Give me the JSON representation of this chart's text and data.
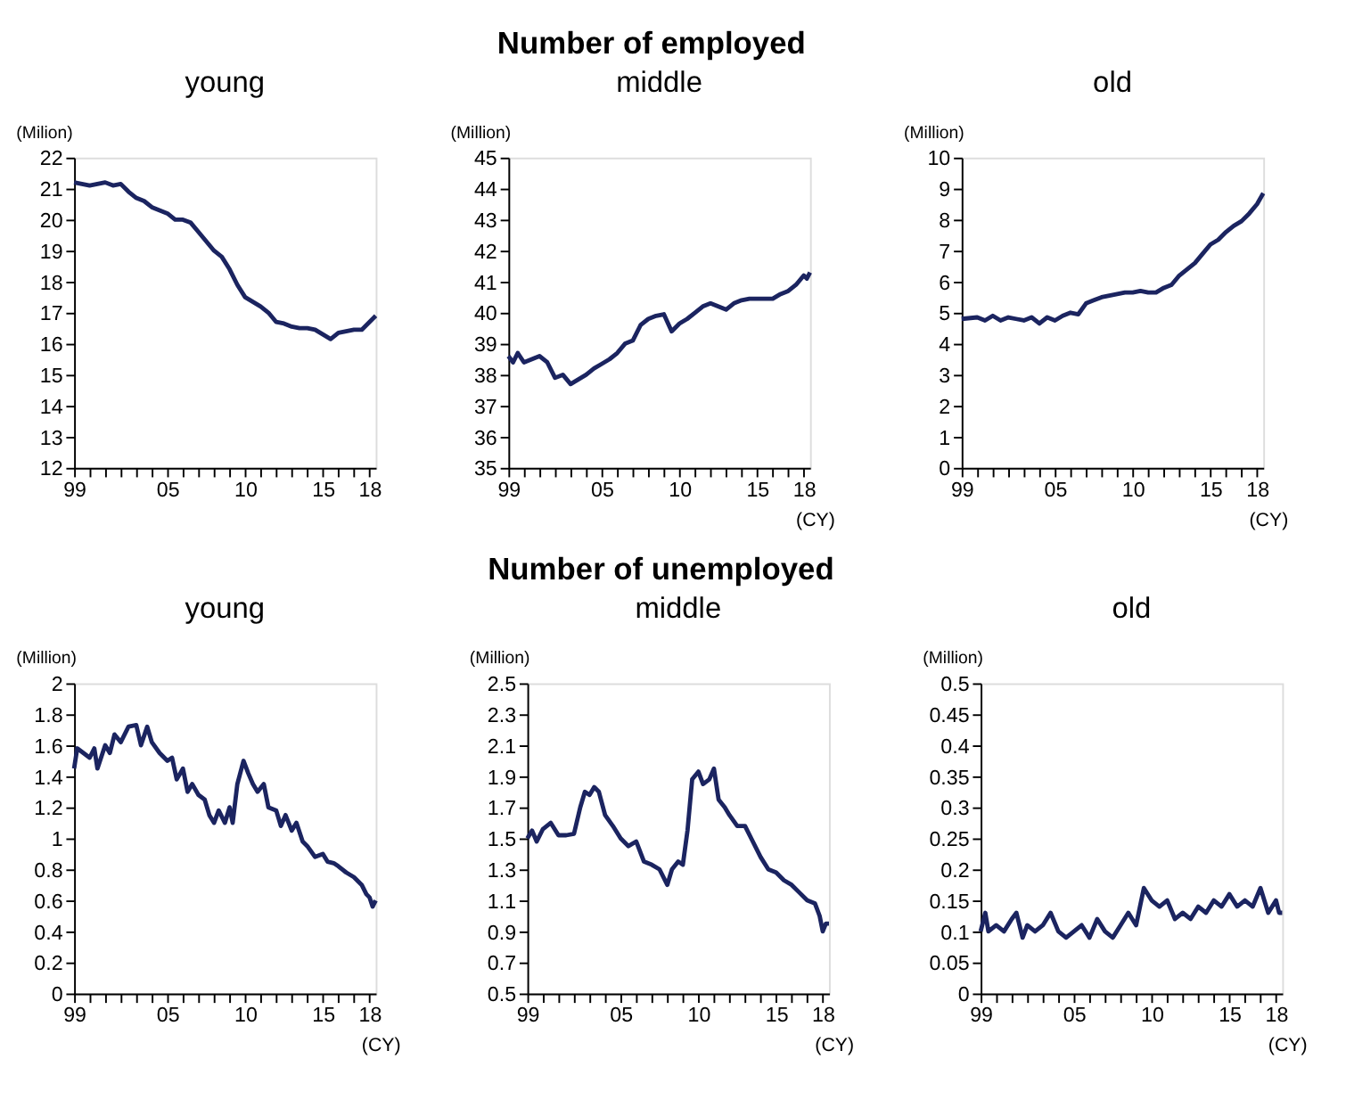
{
  "chart_data": [
    {
      "type": "line",
      "annotations": [
        "Number of employed"
      ],
      "title": "young",
      "ylabel": "(Milion)",
      "xlim": [
        1999,
        2018.4
      ],
      "ylim": [
        12,
        22
      ],
      "yticks": [
        12,
        13,
        14,
        15,
        16,
        17,
        18,
        19,
        20,
        21,
        22
      ],
      "grid": false,
      "marker": "none",
      "line_style": "solid",
      "xticks": [
        {
          "value": 1999,
          "label": "99"
        },
        {
          "value": 2000,
          "label": null
        },
        {
          "value": 2001,
          "label": null
        },
        {
          "value": 2002,
          "label": null
        },
        {
          "value": 2003,
          "label": null
        },
        {
          "value": 2004,
          "label": null
        },
        {
          "value": 2005,
          "label": "05"
        },
        {
          "value": 2006,
          "label": null
        },
        {
          "value": 2007,
          "label": null
        },
        {
          "value": 2008,
          "label": null
        },
        {
          "value": 2009,
          "label": null
        },
        {
          "value": 2010,
          "label": "10"
        },
        {
          "value": 2011,
          "label": null
        },
        {
          "value": 2012,
          "label": null
        },
        {
          "value": 2013,
          "label": null
        },
        {
          "value": 2014,
          "label": null
        },
        {
          "value": 2015,
          "label": "15"
        },
        {
          "value": 2016,
          "label": null
        },
        {
          "value": 2017,
          "label": null
        },
        {
          "value": 2018,
          "label": "18"
        }
      ],
      "series": [
        {
          "color": "#1b2460",
          "x": [
            1999,
            1999.5,
            2000,
            2000.5,
            2001,
            2001.5,
            2002,
            2002.5,
            2003,
            2003.5,
            2004,
            2004.5,
            2005,
            2005.5,
            2006,
            2006.5,
            2007,
            2007.5,
            2008,
            2008.5,
            2009,
            2009.5,
            2010,
            2010.5,
            2011,
            2011.5,
            2012,
            2012.5,
            2013,
            2013.5,
            2014,
            2014.5,
            2015,
            2015.5,
            2016,
            2016.5,
            2017,
            2017.5,
            2018,
            2018.4
          ],
          "values": [
            21.2,
            21.15,
            21.1,
            21.15,
            21.2,
            21.1,
            21.15,
            20.9,
            20.7,
            20.6,
            20.4,
            20.3,
            20.2,
            20.0,
            20.0,
            19.9,
            19.6,
            19.3,
            19.0,
            18.8,
            18.4,
            17.9,
            17.5,
            17.35,
            17.2,
            17.0,
            16.7,
            16.65,
            16.55,
            16.5,
            16.5,
            16.45,
            16.3,
            16.15,
            16.35,
            16.4,
            16.45,
            16.45,
            16.7,
            16.9
          ]
        }
      ]
    },
    {
      "type": "line",
      "title": "middle",
      "ylabel": "(Million)",
      "xlabel": "(CY)",
      "xlim": [
        1999,
        2018.4
      ],
      "ylim": [
        35,
        45
      ],
      "yticks": [
        35,
        36,
        37,
        38,
        39,
        40,
        41,
        42,
        43,
        44,
        45
      ],
      "grid": false,
      "marker": "none",
      "line_style": "solid",
      "xticks": [
        {
          "value": 1999,
          "label": "99"
        },
        {
          "value": 2000,
          "label": null
        },
        {
          "value": 2001,
          "label": null
        },
        {
          "value": 2002,
          "label": null
        },
        {
          "value": 2003,
          "label": null
        },
        {
          "value": 2004,
          "label": null
        },
        {
          "value": 2005,
          "label": "05"
        },
        {
          "value": 2006,
          "label": null
        },
        {
          "value": 2007,
          "label": null
        },
        {
          "value": 2008,
          "label": null
        },
        {
          "value": 2009,
          "label": null
        },
        {
          "value": 2010,
          "label": "10"
        },
        {
          "value": 2011,
          "label": null
        },
        {
          "value": 2012,
          "label": null
        },
        {
          "value": 2013,
          "label": null
        },
        {
          "value": 2014,
          "label": null
        },
        {
          "value": 2015,
          "label": "15"
        },
        {
          "value": 2016,
          "label": null
        },
        {
          "value": 2017,
          "label": null
        },
        {
          "value": 2018,
          "label": "18"
        }
      ],
      "series": [
        {
          "color": "#1b2460",
          "x": [
            1999,
            1999.3,
            1999.6,
            2000,
            2000.5,
            2001,
            2001.5,
            2002,
            2002.5,
            2003,
            2003.5,
            2004,
            2004.5,
            2005,
            2005.5,
            2006,
            2006.5,
            2007,
            2007.5,
            2008,
            2008.5,
            2009,
            2009.5,
            2010,
            2010.5,
            2011,
            2011.5,
            2012,
            2012.5,
            2013,
            2013.5,
            2014,
            2014.5,
            2015,
            2015.5,
            2016,
            2016.5,
            2017,
            2017.5,
            2018,
            2018.2,
            2018.4
          ],
          "values": [
            38.6,
            38.4,
            38.7,
            38.4,
            38.5,
            38.6,
            38.4,
            37.9,
            38.0,
            37.7,
            37.85,
            38.0,
            38.2,
            38.35,
            38.5,
            38.7,
            39.0,
            39.1,
            39.6,
            39.8,
            39.9,
            39.95,
            39.4,
            39.65,
            39.8,
            40.0,
            40.2,
            40.3,
            40.2,
            40.1,
            40.3,
            40.4,
            40.45,
            40.45,
            40.45,
            40.45,
            40.6,
            40.7,
            40.9,
            41.2,
            41.1,
            41.3
          ]
        }
      ]
    },
    {
      "type": "line",
      "title": "old",
      "ylabel": "(Million)",
      "xlabel": "(CY)",
      "xlim": [
        1999,
        2018.4
      ],
      "ylim": [
        0,
        10
      ],
      "yticks": [
        0,
        1,
        2,
        3,
        4,
        5,
        6,
        7,
        8,
        9,
        10
      ],
      "grid": false,
      "marker": "none",
      "line_style": "solid",
      "xticks": [
        {
          "value": 1999,
          "label": "99"
        },
        {
          "value": 2000,
          "label": null
        },
        {
          "value": 2001,
          "label": null
        },
        {
          "value": 2002,
          "label": null
        },
        {
          "value": 2003,
          "label": null
        },
        {
          "value": 2004,
          "label": null
        },
        {
          "value": 2005,
          "label": "05"
        },
        {
          "value": 2006,
          "label": null
        },
        {
          "value": 2007,
          "label": null
        },
        {
          "value": 2008,
          "label": null
        },
        {
          "value": 2009,
          "label": null
        },
        {
          "value": 2010,
          "label": "10"
        },
        {
          "value": 2011,
          "label": null
        },
        {
          "value": 2012,
          "label": null
        },
        {
          "value": 2013,
          "label": null
        },
        {
          "value": 2014,
          "label": null
        },
        {
          "value": 2015,
          "label": "15"
        },
        {
          "value": 2016,
          "label": null
        },
        {
          "value": 2017,
          "label": null
        },
        {
          "value": 2018,
          "label": "18"
        }
      ],
      "series": [
        {
          "color": "#1b2460",
          "x": [
            1999,
            2000,
            2000.5,
            2001,
            2001.5,
            2002,
            2002.5,
            2003,
            2003.5,
            2004,
            2004.5,
            2005,
            2005.5,
            2006,
            2006.5,
            2007,
            2007.5,
            2008,
            2008.5,
            2009,
            2009.5,
            2010,
            2010.5,
            2011,
            2011.5,
            2012,
            2012.5,
            2013,
            2013.5,
            2014,
            2014.5,
            2015,
            2015.5,
            2016,
            2016.5,
            2017,
            2017.5,
            2018,
            2018.4
          ],
          "values": [
            4.8,
            4.85,
            4.75,
            4.9,
            4.75,
            4.85,
            4.8,
            4.75,
            4.85,
            4.65,
            4.85,
            4.75,
            4.9,
            5.0,
            4.95,
            5.3,
            5.4,
            5.5,
            5.55,
            5.6,
            5.65,
            5.65,
            5.7,
            5.65,
            5.65,
            5.8,
            5.9,
            6.2,
            6.4,
            6.6,
            6.9,
            7.2,
            7.35,
            7.6,
            7.8,
            7.95,
            8.2,
            8.5,
            8.85
          ]
        }
      ]
    },
    {
      "type": "line",
      "annotations": [
        "Number of unemployed"
      ],
      "title": "young",
      "ylabel": "(Million)",
      "xlabel": "(CY)",
      "xlim": [
        1999,
        2018.4
      ],
      "ylim": [
        0,
        2
      ],
      "yticks": [
        0,
        0.2,
        0.4,
        0.6,
        0.8,
        1,
        1.2,
        1.4,
        1.6,
        1.8,
        2
      ],
      "grid": false,
      "marker": "none",
      "line_style": "solid",
      "xticks": [
        {
          "value": 1999,
          "label": "99"
        },
        {
          "value": 2000,
          "label": null
        },
        {
          "value": 2001,
          "label": null
        },
        {
          "value": 2002,
          "label": null
        },
        {
          "value": 2003,
          "label": null
        },
        {
          "value": 2004,
          "label": null
        },
        {
          "value": 2005,
          "label": "05"
        },
        {
          "value": 2006,
          "label": null
        },
        {
          "value": 2007,
          "label": null
        },
        {
          "value": 2008,
          "label": null
        },
        {
          "value": 2009,
          "label": null
        },
        {
          "value": 2010,
          "label": "10"
        },
        {
          "value": 2011,
          "label": null
        },
        {
          "value": 2012,
          "label": null
        },
        {
          "value": 2013,
          "label": null
        },
        {
          "value": 2014,
          "label": null
        },
        {
          "value": 2015,
          "label": "15"
        },
        {
          "value": 2016,
          "label": null
        },
        {
          "value": 2017,
          "label": null
        },
        {
          "value": 2018,
          "label": "18"
        }
      ],
      "series": [
        {
          "color": "#1b2460",
          "x": [
            1999,
            1999.2,
            1999.6,
            2000,
            2000.3,
            2000.5,
            2001,
            2001.3,
            2001.6,
            2002,
            2002.5,
            2003,
            2003.3,
            2003.7,
            2004,
            2004.5,
            2005,
            2005.3,
            2005.6,
            2006,
            2006.3,
            2006.6,
            2007,
            2007.4,
            2007.7,
            2008,
            2008.3,
            2008.7,
            2009,
            2009.2,
            2009.5,
            2009.9,
            2010.2,
            2010.5,
            2010.8,
            2011.2,
            2011.5,
            2012,
            2012.3,
            2012.6,
            2013,
            2013.3,
            2013.7,
            2014,
            2014.5,
            2015,
            2015.3,
            2015.7,
            2016,
            2016.5,
            2017,
            2017.5,
            2017.8,
            2018,
            2018.2,
            2018.4
          ],
          "values": [
            1.45,
            1.58,
            1.55,
            1.52,
            1.58,
            1.45,
            1.6,
            1.55,
            1.67,
            1.62,
            1.72,
            1.73,
            1.6,
            1.72,
            1.62,
            1.55,
            1.5,
            1.52,
            1.38,
            1.45,
            1.3,
            1.35,
            1.28,
            1.25,
            1.15,
            1.1,
            1.18,
            1.1,
            1.2,
            1.1,
            1.35,
            1.5,
            1.42,
            1.35,
            1.3,
            1.35,
            1.2,
            1.18,
            1.08,
            1.15,
            1.05,
            1.1,
            0.98,
            0.95,
            0.88,
            0.9,
            0.85,
            0.84,
            0.82,
            0.78,
            0.75,
            0.7,
            0.64,
            0.62,
            0.56,
            0.6
          ]
        }
      ]
    },
    {
      "type": "line",
      "title": "middle",
      "ylabel": "(Million)",
      "xlabel": "(CY)",
      "xlim": [
        1999,
        2018.4
      ],
      "ylim": [
        0.5,
        2.5
      ],
      "yticks": [
        0.5,
        0.7,
        0.9,
        1.1,
        1.3,
        1.5,
        1.7,
        1.9,
        2.1,
        2.3,
        2.5
      ],
      "grid": false,
      "marker": "none",
      "line_style": "solid",
      "xticks": [
        {
          "value": 1999,
          "label": "99"
        },
        {
          "value": 2000,
          "label": null
        },
        {
          "value": 2001,
          "label": null
        },
        {
          "value": 2002,
          "label": null
        },
        {
          "value": 2003,
          "label": null
        },
        {
          "value": 2004,
          "label": null
        },
        {
          "value": 2005,
          "label": "05"
        },
        {
          "value": 2006,
          "label": null
        },
        {
          "value": 2007,
          "label": null
        },
        {
          "value": 2008,
          "label": null
        },
        {
          "value": 2009,
          "label": null
        },
        {
          "value": 2010,
          "label": "10"
        },
        {
          "value": 2011,
          "label": null
        },
        {
          "value": 2012,
          "label": null
        },
        {
          "value": 2013,
          "label": null
        },
        {
          "value": 2014,
          "label": null
        },
        {
          "value": 2015,
          "label": "15"
        },
        {
          "value": 2016,
          "label": null
        },
        {
          "value": 2017,
          "label": null
        },
        {
          "value": 2018,
          "label": "18"
        }
      ],
      "series": [
        {
          "color": "#1b2460",
          "x": [
            1999,
            1999.3,
            1999.6,
            2000,
            2000.5,
            2001,
            2001.5,
            2002,
            2002.4,
            2002.7,
            2003,
            2003.3,
            2003.6,
            2004,
            2004.5,
            2005,
            2005.5,
            2006,
            2006.5,
            2007,
            2007.5,
            2008,
            2008.3,
            2008.7,
            2009,
            2009.3,
            2009.6,
            2010,
            2010.3,
            2010.7,
            2011,
            2011.3,
            2011.7,
            2012,
            2012.5,
            2013,
            2013.5,
            2014,
            2014.5,
            2015,
            2015.5,
            2016,
            2016.5,
            2017,
            2017.5,
            2017.8,
            2018,
            2018.2,
            2018.4
          ],
          "values": [
            1.5,
            1.55,
            1.48,
            1.56,
            1.6,
            1.52,
            1.52,
            1.53,
            1.7,
            1.8,
            1.78,
            1.83,
            1.8,
            1.65,
            1.58,
            1.5,
            1.45,
            1.48,
            1.35,
            1.33,
            1.3,
            1.2,
            1.3,
            1.35,
            1.33,
            1.55,
            1.88,
            1.93,
            1.85,
            1.88,
            1.95,
            1.75,
            1.7,
            1.65,
            1.58,
            1.58,
            1.48,
            1.38,
            1.3,
            1.28,
            1.23,
            1.2,
            1.15,
            1.1,
            1.08,
            1.0,
            0.9,
            0.95,
            0.95
          ]
        }
      ]
    },
    {
      "type": "line",
      "title": "old",
      "ylabel": "(Million)",
      "xlabel": "(CY)",
      "xlim": [
        1999,
        2018.4
      ],
      "ylim": [
        0,
        0.5
      ],
      "yticks": [
        0,
        0.05,
        0.1,
        0.15,
        0.2,
        0.25,
        0.3,
        0.35,
        0.4,
        0.45,
        0.5
      ],
      "grid": false,
      "marker": "none",
      "line_style": "solid",
      "xticks": [
        {
          "value": 1999,
          "label": "99"
        },
        {
          "value": 2000,
          "label": null
        },
        {
          "value": 2001,
          "label": null
        },
        {
          "value": 2002,
          "label": null
        },
        {
          "value": 2003,
          "label": null
        },
        {
          "value": 2004,
          "label": null
        },
        {
          "value": 2005,
          "label": "05"
        },
        {
          "value": 2006,
          "label": null
        },
        {
          "value": 2007,
          "label": null
        },
        {
          "value": 2008,
          "label": null
        },
        {
          "value": 2009,
          "label": null
        },
        {
          "value": 2010,
          "label": "10"
        },
        {
          "value": 2011,
          "label": null
        },
        {
          "value": 2012,
          "label": null
        },
        {
          "value": 2013,
          "label": null
        },
        {
          "value": 2014,
          "label": null
        },
        {
          "value": 2015,
          "label": "15"
        },
        {
          "value": 2016,
          "label": null
        },
        {
          "value": 2017,
          "label": null
        },
        {
          "value": 2018,
          "label": "18"
        }
      ],
      "series": [
        {
          "color": "#1b2460",
          "x": [
            1999,
            1999.3,
            1999.5,
            2000,
            2000.5,
            2001,
            2001.3,
            2001.7,
            2002,
            2002.5,
            2003,
            2003.5,
            2004,
            2004.5,
            2005,
            2005.5,
            2006,
            2006.5,
            2007,
            2007.5,
            2008,
            2008.5,
            2009,
            2009.5,
            2010,
            2010.5,
            2011,
            2011.5,
            2012,
            2012.5,
            2013,
            2013.5,
            2014,
            2014.5,
            2015,
            2015.5,
            2016,
            2016.5,
            2017,
            2017.5,
            2018,
            2018.2,
            2018.4
          ],
          "values": [
            0.1,
            0.13,
            0.1,
            0.11,
            0.1,
            0.12,
            0.13,
            0.09,
            0.11,
            0.1,
            0.11,
            0.13,
            0.1,
            0.09,
            0.1,
            0.11,
            0.09,
            0.12,
            0.1,
            0.09,
            0.11,
            0.13,
            0.11,
            0.17,
            0.15,
            0.14,
            0.15,
            0.12,
            0.13,
            0.12,
            0.14,
            0.13,
            0.15,
            0.14,
            0.16,
            0.14,
            0.15,
            0.14,
            0.17,
            0.13,
            0.15,
            0.13,
            0.13
          ]
        }
      ]
    }
  ]
}
